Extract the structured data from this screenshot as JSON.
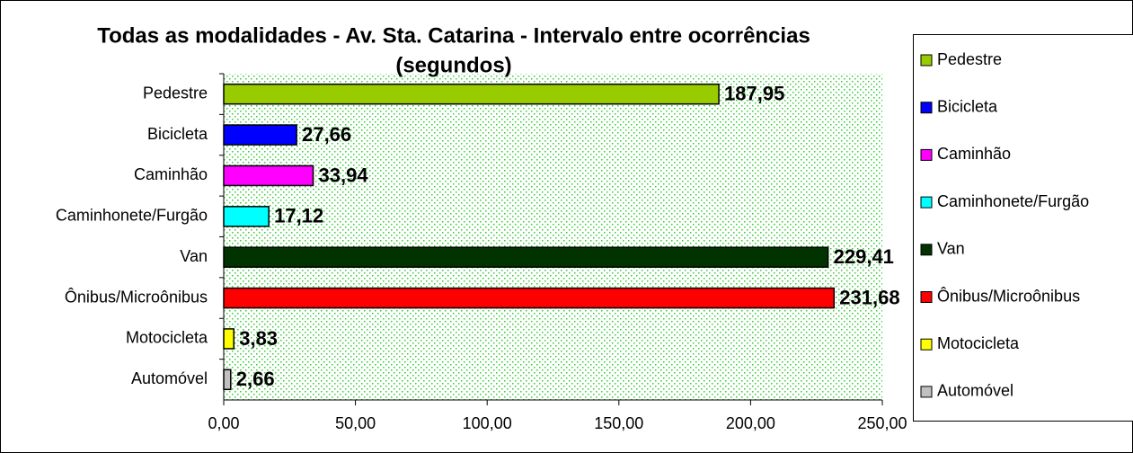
{
  "chart_data": {
    "type": "barh",
    "title": [
      "Todas as modalidades - Av. Sta. Catarina - Intervalo entre ocorrências",
      "(segundos)"
    ],
    "categories": [
      "Pedestre",
      "Bicicleta",
      "Caminhão",
      "Caminhonete/Furgão",
      "Van",
      "Ônibus/Microônibus",
      "Motocicleta",
      "Automóvel"
    ],
    "values": [
      187.95,
      27.66,
      33.94,
      17.12,
      229.41,
      231.68,
      3.83,
      2.66
    ],
    "value_labels": [
      "187,95",
      "27,66",
      "33,94",
      "17,12",
      "229,41",
      "231,68",
      "3,83",
      "2,66"
    ],
    "colors": [
      "#99cc00",
      "#0000ff",
      "#ff00ff",
      "#00ffff",
      "#003300",
      "#ff0000",
      "#ffff00",
      "#c0c0c0"
    ],
    "xlim": [
      0,
      250
    ],
    "xticks": [
      {
        "value": 0,
        "label": "0,00"
      },
      {
        "value": 50,
        "label": "50,00"
      },
      {
        "value": 100,
        "label": "100,00"
      },
      {
        "value": 150,
        "label": "150,00"
      },
      {
        "value": 200,
        "label": "200,00"
      },
      {
        "value": 250,
        "label": "250,00"
      }
    ],
    "legend": "right"
  }
}
